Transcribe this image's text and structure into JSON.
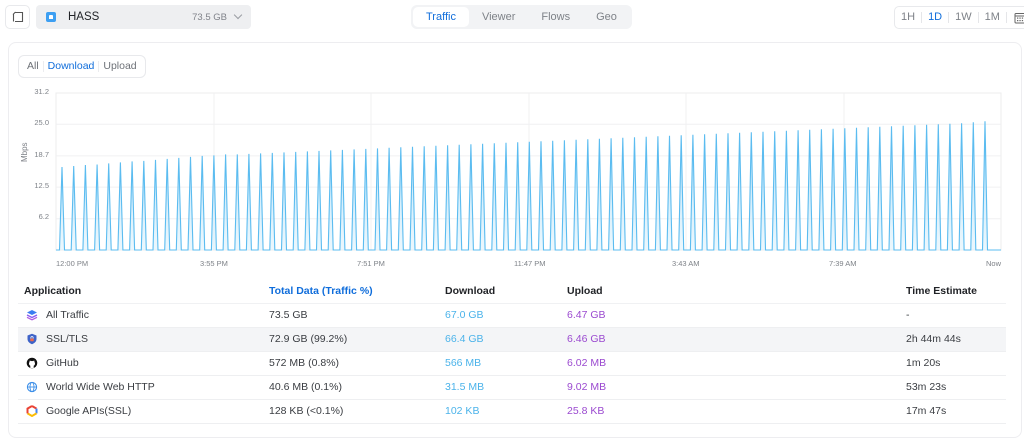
{
  "topbar": {
    "back_icon": "window-back-icon",
    "site": {
      "name": "HASS",
      "size": "73.5 GB",
      "icon": "home-icon"
    },
    "tabs": [
      {
        "label": "Traffic",
        "active": true
      },
      {
        "label": "Viewer",
        "active": false
      },
      {
        "label": "Flows",
        "active": false
      },
      {
        "label": "Geo",
        "active": false
      }
    ],
    "ranges": [
      {
        "label": "1H",
        "active": false
      },
      {
        "label": "1D",
        "active": true
      },
      {
        "label": "1W",
        "active": false
      },
      {
        "label": "1M",
        "active": false
      }
    ],
    "calendar_icon": "calendar-icon"
  },
  "series_toggle": [
    {
      "label": "All",
      "active": false
    },
    {
      "label": "Download",
      "active": true
    },
    {
      "label": "Upload",
      "active": false
    }
  ],
  "chart_data": {
    "type": "area",
    "title": "",
    "xlabel": "",
    "ylabel": "Mbps",
    "ylim": [
      0,
      31.2
    ],
    "yticks": [
      "31.2",
      "25.0",
      "18.7",
      "12.5",
      "6.2"
    ],
    "xticks": [
      "12:00 PM",
      "3:55 PM",
      "7:51 PM",
      "11:47 PM",
      "3:43 AM",
      "7:39 AM",
      "Now"
    ],
    "grid": true,
    "legend": "none",
    "series": [
      {
        "name": "Download",
        "color": "#5bbcf0",
        "peaks": [
          16.5,
          16.7,
          16.9,
          17.0,
          17.2,
          17.4,
          17.6,
          17.7,
          17.9,
          18.1,
          18.3,
          18.5,
          18.7,
          18.8,
          19.0,
          19.0,
          19.1,
          19.2,
          19.3,
          19.4,
          19.5,
          19.6,
          19.7,
          19.8,
          19.9,
          20.0,
          20.1,
          20.2,
          20.3,
          20.4,
          20.5,
          20.6,
          20.7,
          20.8,
          20.9,
          21.0,
          21.1,
          21.2,
          21.3,
          21.4,
          21.5,
          21.6,
          21.7,
          21.8,
          21.9,
          22.0,
          22.1,
          22.2,
          22.3,
          22.4,
          22.5,
          22.6,
          22.7,
          22.8,
          22.9,
          23.0,
          23.1,
          23.2,
          23.3,
          23.4,
          23.5,
          23.6,
          23.7,
          23.8,
          23.9,
          24.0,
          24.1,
          24.2,
          24.3,
          24.4,
          24.5,
          24.6,
          24.7,
          24.8,
          24.9,
          25.0,
          25.1,
          25.2,
          25.4,
          25.6
        ]
      }
    ]
  },
  "table": {
    "headers": [
      "Application",
      "Total Data (Traffic %)",
      "Download",
      "Upload",
      "Time Estimate"
    ],
    "rows": [
      {
        "icon": "layers-icon",
        "app": "All Traffic",
        "total": "73.5 GB",
        "download": "67.0 GB",
        "upload": "6.47 GB",
        "time": "-"
      },
      {
        "icon": "shield-lock-icon",
        "app": "SSL/TLS",
        "total": "72.9 GB (99.2%)",
        "download": "66.4 GB",
        "upload": "6.46 GB",
        "time": "2h 44m 44s"
      },
      {
        "icon": "github-icon",
        "app": "GitHub",
        "total": "572 MB (0.8%)",
        "download": "566 MB",
        "upload": "6.02 MB",
        "time": "1m 20s"
      },
      {
        "icon": "globe-icon",
        "app": "World Wide Web HTTP",
        "total": "40.6 MB (0.1%)",
        "download": "31.5 MB",
        "upload": "9.02 MB",
        "time": "53m 23s"
      },
      {
        "icon": "google-cloud-icon",
        "app": "Google APIs(SSL)",
        "total": "128 KB (<0.1%)",
        "download": "102 KB",
        "upload": "25.8 KB",
        "time": "17m 47s"
      }
    ]
  }
}
